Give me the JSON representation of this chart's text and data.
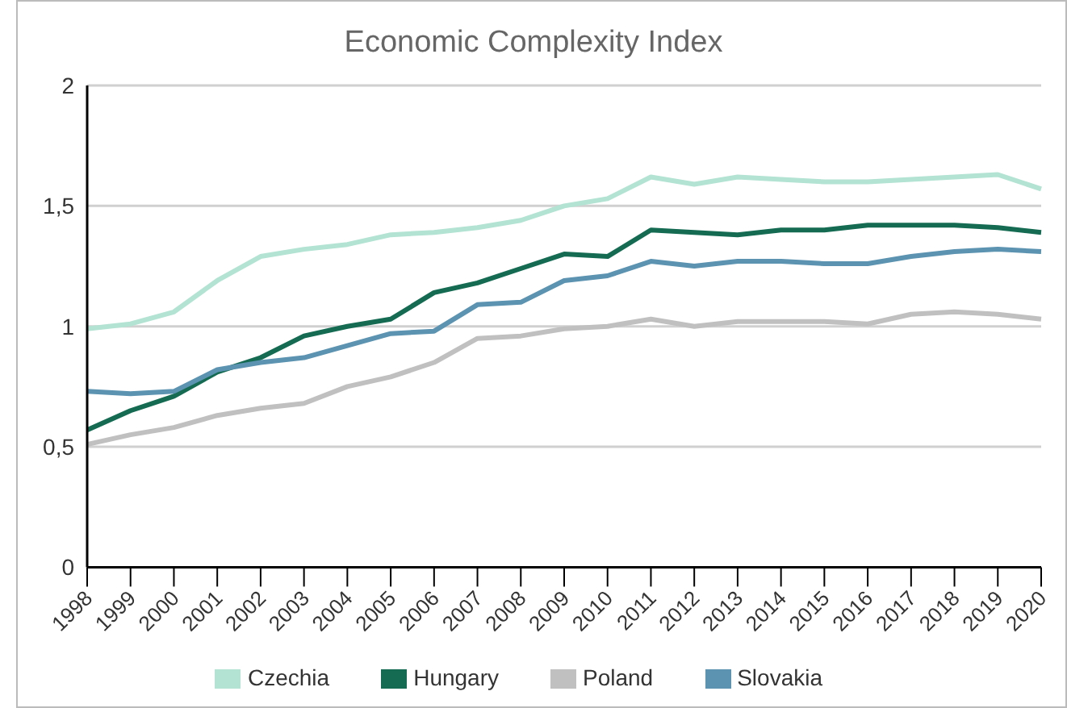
{
  "chart_data": {
    "type": "line",
    "title": "Economic Complexity Index",
    "categories": [
      "1998",
      "1999",
      "2000",
      "2001",
      "2002",
      "2003",
      "2004",
      "2005",
      "2006",
      "2007",
      "2008",
      "2009",
      "2010",
      "2011",
      "2012",
      "2013",
      "2014",
      "2015",
      "2016",
      "2017",
      "2018",
      "2019",
      "2020"
    ],
    "series": [
      {
        "name": "Czechia",
        "color": "#b3e3d2",
        "values": [
          0.99,
          1.01,
          1.06,
          1.19,
          1.29,
          1.32,
          1.34,
          1.38,
          1.39,
          1.41,
          1.44,
          1.5,
          1.53,
          1.62,
          1.59,
          1.62,
          1.61,
          1.6,
          1.6,
          1.61,
          1.62,
          1.63,
          1.57
        ]
      },
      {
        "name": "Hungary",
        "color": "#146b52",
        "values": [
          0.57,
          0.65,
          0.71,
          0.81,
          0.87,
          0.96,
          1.0,
          1.03,
          1.14,
          1.18,
          1.24,
          1.3,
          1.29,
          1.4,
          1.39,
          1.38,
          1.4,
          1.4,
          1.42,
          1.42,
          1.42,
          1.41,
          1.39
        ]
      },
      {
        "name": "Poland",
        "color": "#c0c0c0",
        "values": [
          0.51,
          0.55,
          0.58,
          0.63,
          0.66,
          0.68,
          0.75,
          0.79,
          0.85,
          0.95,
          0.96,
          0.99,
          1.0,
          1.03,
          1.0,
          1.02,
          1.02,
          1.02,
          1.01,
          1.05,
          1.06,
          1.05,
          1.03
        ]
      },
      {
        "name": "Slovakia",
        "color": "#5b93b0",
        "values": [
          0.73,
          0.72,
          0.73,
          0.82,
          0.85,
          0.87,
          0.92,
          0.97,
          0.98,
          1.09,
          1.1,
          1.19,
          1.21,
          1.27,
          1.25,
          1.27,
          1.27,
          1.26,
          1.26,
          1.29,
          1.31,
          1.32,
          1.31
        ]
      }
    ],
    "ylim": [
      0,
      2
    ],
    "yticks": [
      0,
      {
        "value": 0.5,
        "label": "0,5"
      },
      1,
      {
        "value": 1.5,
        "label": "1,5"
      },
      2
    ],
    "grid": "y",
    "legend": "bottom",
    "marker": "none",
    "line_style": "solid"
  }
}
